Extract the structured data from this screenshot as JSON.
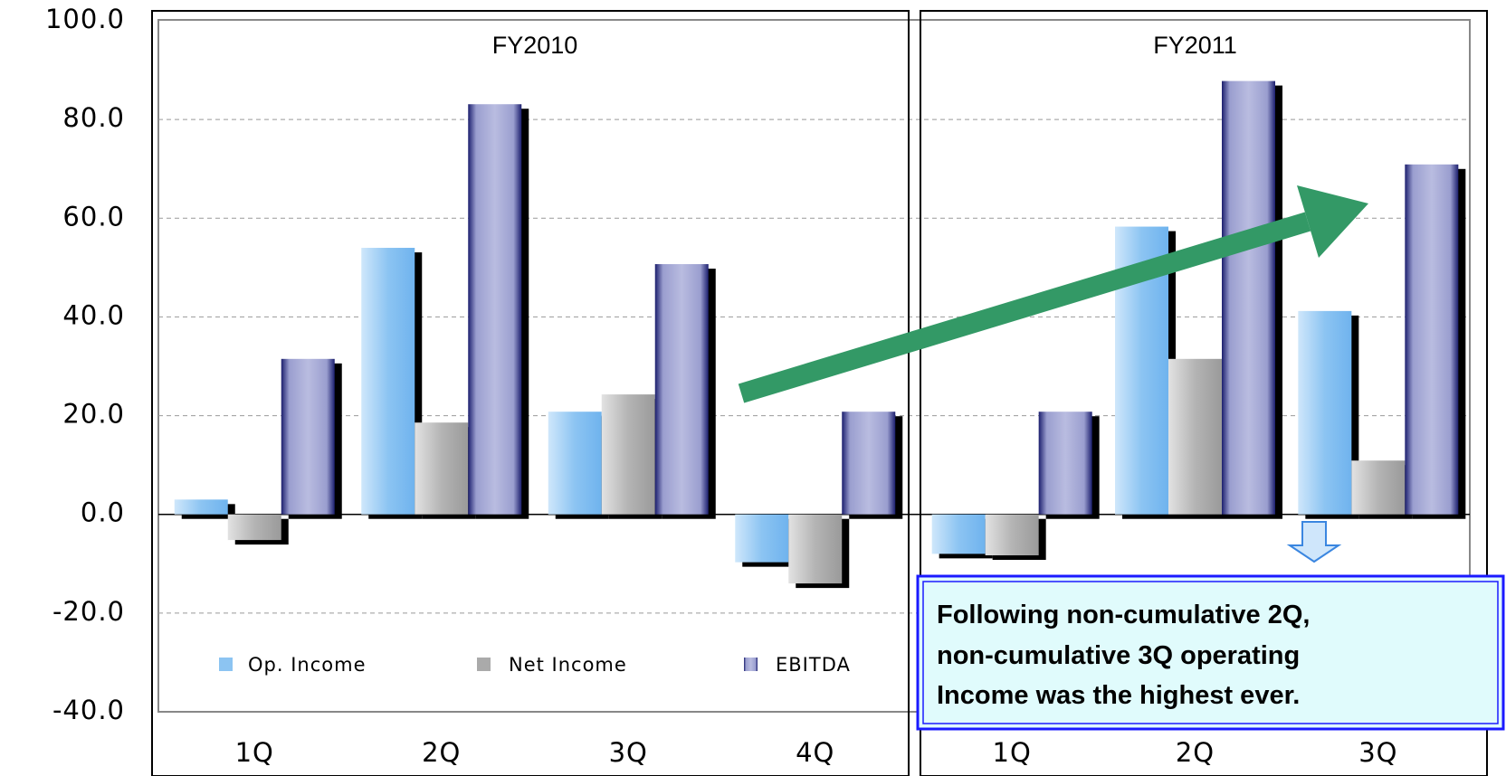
{
  "chart_data": {
    "type": "bar",
    "groups": [
      {
        "label": "FY2010",
        "categories": [
          "1Q",
          "2Q",
          "3Q",
          "4Q"
        ]
      },
      {
        "label": "FY2011",
        "categories": [
          "1Q",
          "2Q",
          "3Q"
        ]
      }
    ],
    "series": [
      {
        "name": "Op. Income",
        "color": "#8cc4f2",
        "values": [
          3.0,
          54.0,
          20.8,
          -9.7,
          -8.0,
          58.3,
          41.2
        ]
      },
      {
        "name": "Net Income",
        "color": "#aaaaaa",
        "values": [
          -5.2,
          18.6,
          24.3,
          -14.0,
          -8.3,
          31.5,
          10.9
        ]
      },
      {
        "name": "EBITDA",
        "color": "#9a9ecf",
        "values": [
          31.5,
          83.1,
          50.7,
          20.8,
          20.8,
          87.8,
          70.9
        ]
      }
    ],
    "ylim": [
      -40,
      100
    ],
    "yticks": [
      {
        "value": -40,
        "label": "-40.0"
      },
      {
        "value": -20,
        "label": "-20.0"
      },
      {
        "value": 0,
        "label": "0.0"
      },
      {
        "value": 20,
        "label": "20.0"
      },
      {
        "value": 40,
        "label": "40.0"
      },
      {
        "value": 60,
        "label": "60.0"
      },
      {
        "value": 80,
        "label": "80.0"
      },
      {
        "value": 100,
        "label": "100.0"
      }
    ],
    "grid": true,
    "annotation": [
      "Following non-cumulative 2Q,",
      "non-cumulative 3Q operating",
      "Income was the highest ever."
    ]
  }
}
